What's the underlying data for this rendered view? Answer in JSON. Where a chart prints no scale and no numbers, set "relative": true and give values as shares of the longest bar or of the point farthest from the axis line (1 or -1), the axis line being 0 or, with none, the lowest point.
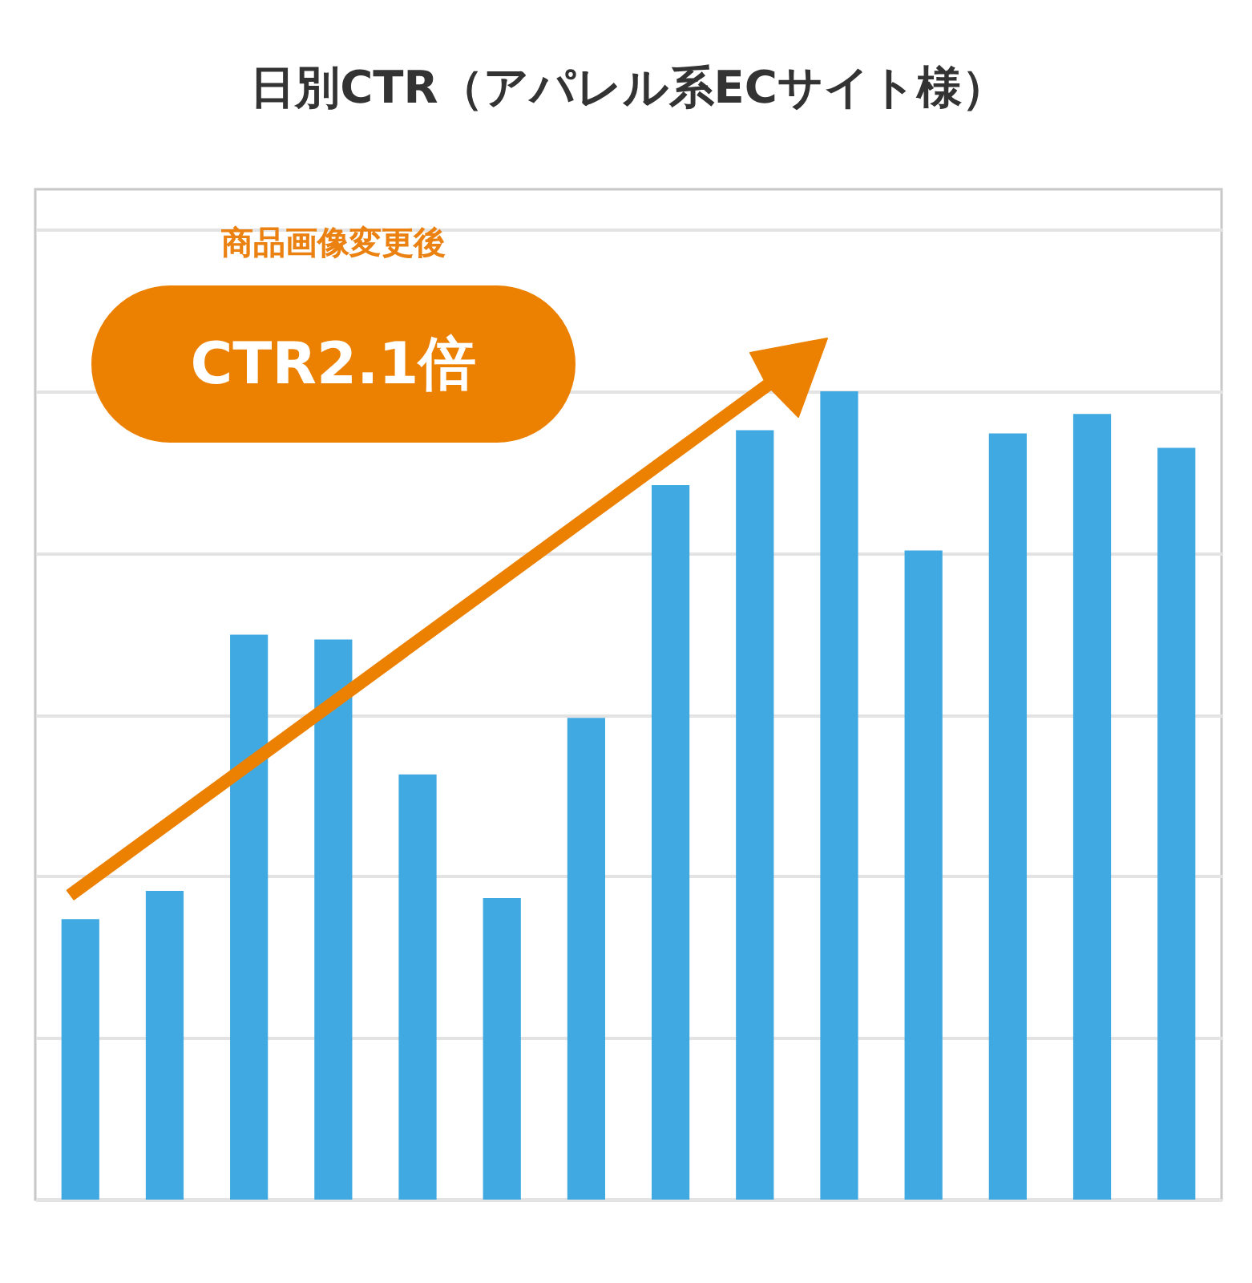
{
  "chart_data": {
    "type": "bar",
    "title": "日別CTR（アパレル系ECサイト様）",
    "relative": true,
    "grid": "y",
    "categories": [
      null,
      null,
      null,
      null,
      null,
      null,
      null,
      null,
      null,
      null,
      null,
      null,
      null,
      null
    ],
    "values": [
      0.347,
      0.382,
      0.699,
      0.693,
      0.526,
      0.373,
      0.596,
      0.884,
      0.952,
      1,
      0.803,
      0.948,
      0.972,
      0.93
    ],
    "color": "#41a9e1",
    "annotations": [
      "商品画像変更後",
      "CTR2.1倍"
    ]
  }
}
